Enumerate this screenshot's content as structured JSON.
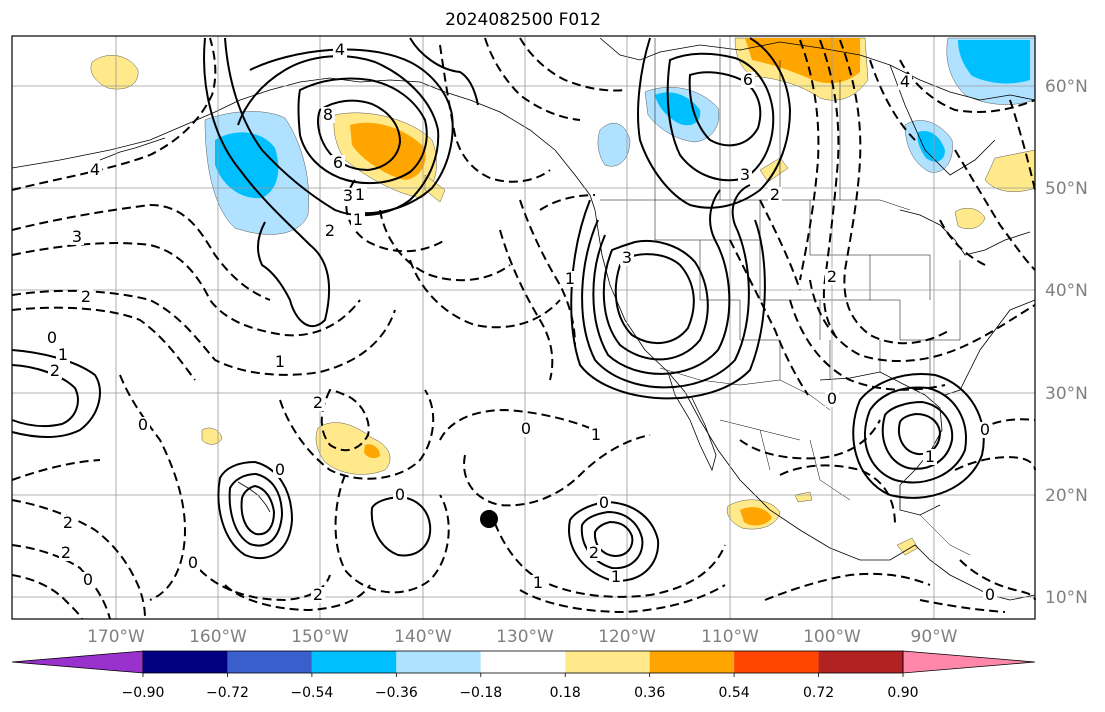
{
  "title": "2024082500 F012",
  "map": {
    "lat_labels": [
      "60°N",
      "50°N",
      "40°N",
      "30°N",
      "20°N",
      "10°N"
    ],
    "lon_labels": [
      "170°W",
      "160°W",
      "150°W",
      "140°W",
      "130°W",
      "120°W",
      "110°W",
      "100°W",
      "90°W"
    ],
    "extent": {
      "lon": [
        -180,
        -80
      ],
      "lat": [
        8,
        65
      ]
    }
  },
  "colorbar": {
    "tick_labels": [
      "−0.90",
      "−0.72",
      "−0.54",
      "−0.36",
      "−0.18",
      "0.18",
      "0.36",
      "0.54",
      "0.72",
      "0.90"
    ],
    "colors": [
      "#9932cc",
      "#000080",
      "#3a5fcd",
      "#00bfff",
      "#b0e2ff",
      "#ffffff",
      "#ffe98a",
      "#ffa500",
      "#ff4500",
      "#b22222",
      "#ff88aa"
    ]
  },
  "contour_labels": [
    {
      "text": "4"
    },
    {
      "text": "8"
    },
    {
      "text": "6"
    },
    {
      "text": "3"
    },
    {
      "text": "2"
    },
    {
      "text": "1"
    },
    {
      "text": "4"
    },
    {
      "text": "3"
    },
    {
      "text": "2"
    },
    {
      "text": "0"
    },
    {
      "text": "1"
    },
    {
      "text": "2"
    },
    {
      "text": "1"
    },
    {
      "text": "2"
    },
    {
      "text": "0"
    },
    {
      "text": "0"
    },
    {
      "text": "0"
    },
    {
      "text": "0"
    },
    {
      "text": "1"
    },
    {
      "text": "2"
    },
    {
      "text": "1"
    },
    {
      "text": "0"
    },
    {
      "text": "2"
    },
    {
      "text": "2"
    },
    {
      "text": "1"
    },
    {
      "text": "0"
    },
    {
      "text": "1"
    },
    {
      "text": "6"
    },
    {
      "text": "3"
    },
    {
      "text": "2"
    },
    {
      "text": "3"
    },
    {
      "text": "1"
    },
    {
      "text": "2"
    },
    {
      "text": "0"
    },
    {
      "text": "1"
    },
    {
      "text": "0"
    },
    {
      "text": "0"
    },
    {
      "text": "4"
    },
    {
      "text": "0"
    },
    {
      "text": "2"
    }
  ],
  "marker": {
    "name": "black-dot",
    "color": "#000000"
  }
}
